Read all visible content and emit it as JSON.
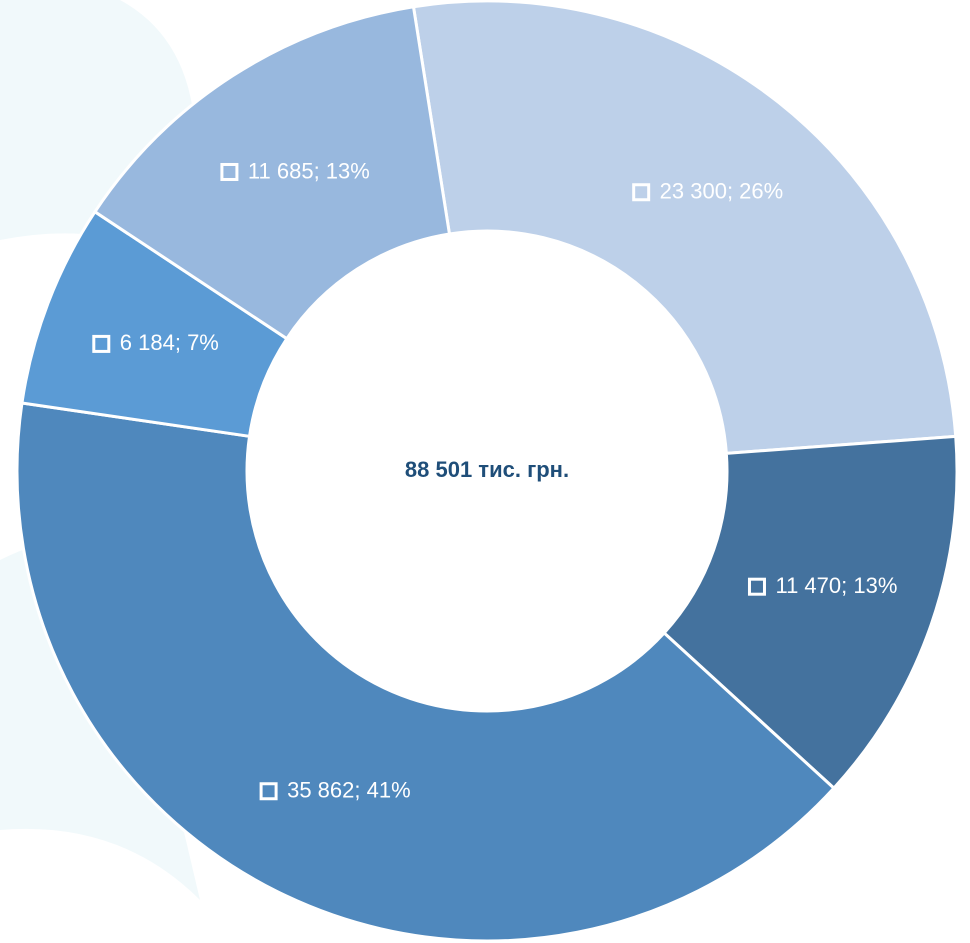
{
  "chart_data": {
    "type": "donut",
    "center_label": "88 501 тис. грн.",
    "values": [
      23300,
      11470,
      35862,
      6184,
      11685
    ],
    "value_labels": [
      "23 300; 26%",
      "11 470; 13%",
      "35 862; 41%",
      "6 184; 7%",
      "11 685; 13%"
    ],
    "colors": [
      "#bdd0e9",
      "#44729e",
      "#4f88bd",
      "#5b9bd5",
      "#98b8de"
    ]
  }
}
